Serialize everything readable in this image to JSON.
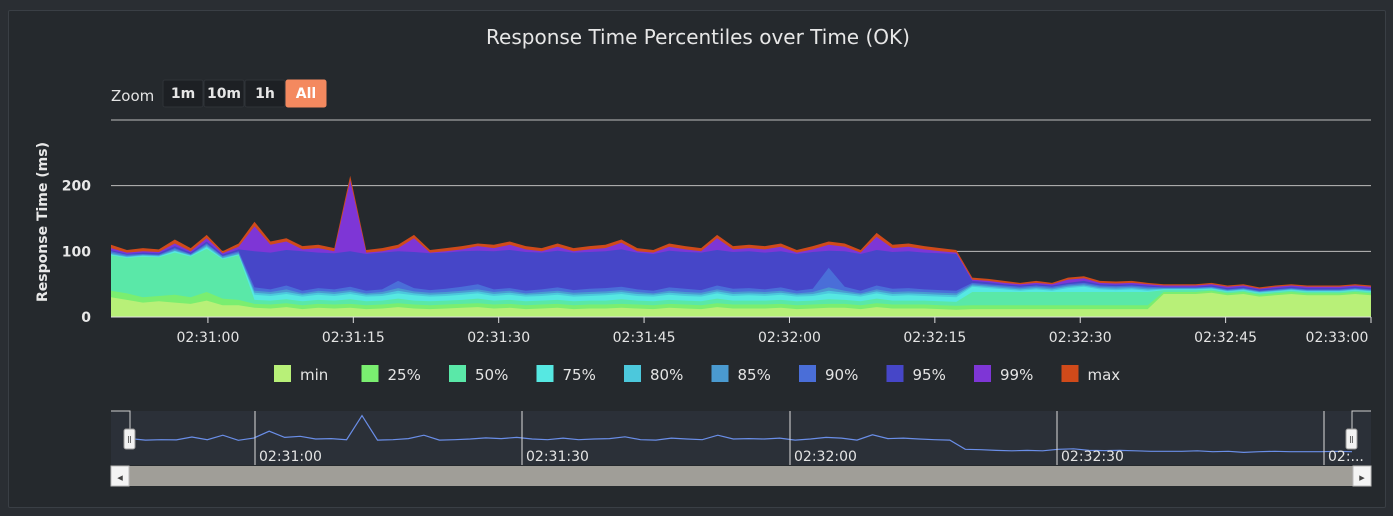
{
  "chart_data": {
    "type": "area",
    "title": "Response Time Percentiles over Time (OK)",
    "ylabel": "Response Time (ms)",
    "xlabel": "",
    "ylim": [
      0,
      300
    ],
    "y_ticks": [
      "0",
      "100",
      "200"
    ],
    "x_ticks": [
      "02:31:00",
      "02:31:15",
      "02:31:30",
      "02:31:45",
      "02:32:00",
      "02:32:15",
      "02:32:30",
      "02:32:45",
      "02:33:00"
    ],
    "grid": true,
    "legend_position": "bottom",
    "stacked": false,
    "x_start": "02:30:50",
    "x_end": "02:33:00",
    "series": [
      {
        "name": "max",
        "color": "#d04a1a",
        "values": [
          110,
          102,
          105,
          103,
          118,
          105,
          125,
          100,
          112,
          145,
          115,
          120,
          108,
          110,
          105,
          215,
          102,
          105,
          110,
          125,
          102,
          105,
          108,
          112,
          110,
          115,
          108,
          105,
          112,
          105,
          108,
          110,
          118,
          105,
          102,
          112,
          108,
          105,
          125,
          108,
          110,
          108,
          112,
          102,
          108,
          115,
          112,
          102,
          128,
          110,
          112,
          108,
          105,
          102,
          60,
          58,
          55,
          52,
          55,
          52,
          60,
          62,
          55,
          54,
          55,
          52,
          50,
          50,
          50,
          52,
          48,
          50,
          45,
          48,
          50,
          48,
          48,
          48,
          50,
          48
        ]
      },
      {
        "name": "99%",
        "color": "#7e36d6",
        "values": [
          105,
          98,
          100,
          99,
          112,
          100,
          120,
          97,
          107,
          138,
          110,
          115,
          103,
          105,
          100,
          208,
          98,
          100,
          105,
          120,
          98,
          100,
          103,
          108,
          105,
          110,
          103,
          100,
          107,
          100,
          103,
          105,
          113,
          100,
          98,
          107,
          103,
          100,
          120,
          103,
          105,
          103,
          107,
          98,
          103,
          110,
          107,
          98,
          122,
          105,
          107,
          103,
          100,
          98,
          57,
          55,
          52,
          50,
          52,
          50,
          57,
          59,
          52,
          51,
          52,
          50,
          48,
          48,
          48,
          50,
          46,
          48,
          43,
          46,
          48,
          46,
          46,
          46,
          48,
          46
        ]
      },
      {
        "name": "95%",
        "color": "#4646c8",
        "values": [
          102,
          96,
          98,
          97,
          108,
          98,
          115,
          95,
          103,
          100,
          98,
          102,
          100,
          98,
          97,
          100,
          96,
          98,
          100,
          99,
          97,
          98,
          100,
          101,
          100,
          102,
          99,
          98,
          101,
          98,
          99,
          100,
          103,
          98,
          96,
          101,
          99,
          98,
          102,
          99,
          100,
          98,
          100,
          96,
          99,
          101,
          100,
          96,
          102,
          99,
          100,
          98,
          97,
          96,
          55,
          53,
          50,
          48,
          50,
          48,
          52,
          55,
          50,
          49,
          50,
          48,
          46,
          46,
          46,
          48,
          44,
          46,
          42,
          44,
          46,
          44,
          44,
          44,
          46,
          44
        ]
      },
      {
        "name": "90%",
        "color": "#4a6ed8",
        "values": [
          100,
          95,
          96,
          95,
          105,
          96,
          112,
          93,
          100,
          45,
          42,
          48,
          40,
          44,
          42,
          46,
          40,
          42,
          55,
          44,
          41,
          43,
          46,
          50,
          42,
          44,
          40,
          42,
          45,
          41,
          43,
          44,
          46,
          42,
          40,
          45,
          43,
          41,
          48,
          43,
          44,
          42,
          45,
          40,
          43,
          75,
          46,
          40,
          48,
          43,
          44,
          42,
          41,
          40,
          52,
          50,
          48,
          46,
          48,
          46,
          50,
          52,
          48,
          47,
          48,
          46,
          45,
          45,
          45,
          46,
          42,
          44,
          40,
          42,
          44,
          42,
          42,
          42,
          44,
          42
        ]
      },
      {
        "name": "85%",
        "color": "#4a9ad0",
        "values": [
          98,
          93,
          95,
          94,
          103,
          95,
          110,
          92,
          98,
          40,
          38,
          42,
          36,
          40,
          38,
          41,
          36,
          38,
          44,
          39,
          37,
          38,
          40,
          42,
          38,
          40,
          36,
          38,
          40,
          37,
          38,
          39,
          41,
          38,
          36,
          40,
          38,
          37,
          42,
          38,
          39,
          38,
          40,
          36,
          38,
          45,
          40,
          36,
          42,
          38,
          39,
          38,
          37,
          36,
          50,
          48,
          46,
          44,
          46,
          44,
          48,
          50,
          46,
          45,
          46,
          44,
          44,
          44,
          44,
          45,
          41,
          43,
          39,
          41,
          43,
          41,
          41,
          41,
          43,
          41
        ]
      },
      {
        "name": "80%",
        "color": "#4cc8dc",
        "values": [
          96,
          92,
          94,
          93,
          101,
          94,
          108,
          90,
          96,
          37,
          35,
          38,
          34,
          37,
          35,
          38,
          34,
          35,
          40,
          36,
          34,
          35,
          37,
          39,
          35,
          37,
          34,
          35,
          37,
          34,
          35,
          36,
          38,
          35,
          34,
          37,
          35,
          34,
          39,
          35,
          36,
          35,
          37,
          34,
          35,
          40,
          37,
          34,
          39,
          35,
          36,
          35,
          34,
          33,
          48,
          46,
          44,
          42,
          44,
          42,
          46,
          48,
          44,
          43,
          44,
          42,
          43,
          43,
          43,
          44,
          40,
          42,
          38,
          40,
          42,
          40,
          40,
          40,
          42,
          40
        ]
      },
      {
        "name": "75%",
        "color": "#56e8e2",
        "values": [
          95,
          91,
          93,
          92,
          100,
          93,
          106,
          89,
          95,
          34,
          32,
          35,
          31,
          34,
          32,
          35,
          31,
          32,
          36,
          33,
          31,
          32,
          34,
          36,
          32,
          34,
          31,
          32,
          34,
          31,
          32,
          33,
          35,
          32,
          31,
          34,
          32,
          31,
          36,
          32,
          33,
          32,
          34,
          31,
          32,
          36,
          34,
          31,
          36,
          32,
          33,
          32,
          31,
          30,
          46,
          44,
          42,
          40,
          42,
          40,
          44,
          46,
          42,
          41,
          42,
          40,
          42,
          42,
          42,
          43,
          39,
          41,
          37,
          39,
          41,
          39,
          39,
          39,
          41,
          39
        ]
      },
      {
        "name": "50%",
        "color": "#5ae8a8",
        "values": [
          94,
          90,
          92,
          91,
          98,
          92,
          104,
          88,
          94,
          26,
          25,
          27,
          24,
          26,
          25,
          27,
          24,
          25,
          28,
          25,
          24,
          25,
          26,
          28,
          25,
          26,
          24,
          25,
          26,
          24,
          25,
          25,
          27,
          25,
          24,
          26,
          25,
          24,
          28,
          25,
          25,
          25,
          26,
          24,
          25,
          27,
          26,
          24,
          28,
          25,
          25,
          25,
          24,
          23,
          38,
          38,
          38,
          38,
          38,
          38,
          38,
          38,
          38,
          38,
          38,
          38,
          41,
          41,
          41,
          42,
          38,
          40,
          36,
          38,
          40,
          38,
          38,
          38,
          40,
          38
        ]
      },
      {
        "name": "25%",
        "color": "#7aee70",
        "values": [
          40,
          36,
          30,
          32,
          34,
          30,
          38,
          28,
          26,
          20,
          19,
          21,
          18,
          20,
          19,
          20,
          18,
          19,
          21,
          19,
          18,
          19,
          20,
          21,
          19,
          20,
          18,
          19,
          20,
          18,
          19,
          19,
          20,
          19,
          18,
          20,
          19,
          18,
          21,
          19,
          19,
          19,
          20,
          18,
          19,
          20,
          20,
          18,
          21,
          19,
          19,
          19,
          18,
          17,
          18,
          18,
          18,
          18,
          18,
          18,
          18,
          18,
          18,
          18,
          18,
          18,
          38,
          38,
          38,
          40,
          36,
          38,
          34,
          36,
          38,
          36,
          36,
          36,
          38,
          36
        ]
      },
      {
        "name": "min",
        "color": "#b8f078",
        "values": [
          30,
          26,
          22,
          24,
          22,
          20,
          25,
          18,
          18,
          14,
          13,
          15,
          12,
          14,
          13,
          14,
          12,
          13,
          15,
          13,
          12,
          13,
          14,
          15,
          13,
          14,
          12,
          13,
          14,
          12,
          13,
          13,
          14,
          13,
          12,
          14,
          13,
          12,
          15,
          13,
          13,
          13,
          14,
          12,
          13,
          14,
          14,
          12,
          15,
          13,
          13,
          13,
          12,
          11,
          12,
          12,
          12,
          12,
          12,
          12,
          12,
          12,
          12,
          12,
          12,
          12,
          35,
          35,
          35,
          37,
          33,
          35,
          31,
          33,
          35,
          33,
          33,
          33,
          35,
          33
        ]
      }
    ]
  },
  "zoom": {
    "label": "Zoom",
    "buttons": [
      "1m",
      "10m",
      "1h",
      "All"
    ],
    "active": "All"
  },
  "navigator": {
    "x_ticks": [
      "02:31:00",
      "02:31:30",
      "02:32:00",
      "02:32:30",
      "02:..."
    ],
    "handle_glyph": "Ⅱ",
    "left_arrow": "◂",
    "right_arrow": "▸"
  }
}
